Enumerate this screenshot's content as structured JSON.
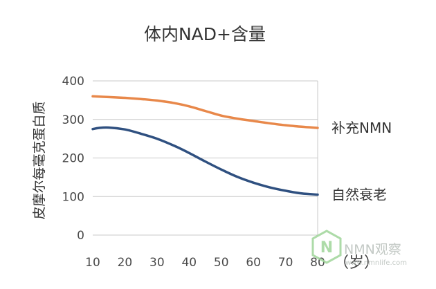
{
  "chart_data": {
    "type": "line",
    "title": "体内NAD+含量",
    "ylabel": "皮摩尔每毫克蛋白质",
    "x_unit_label": "（岁）",
    "x_ticks": [
      10,
      20,
      30,
      40,
      50,
      60,
      70,
      80
    ],
    "y_ticks": [
      0,
      100,
      200,
      300,
      400
    ],
    "xlim": [
      10,
      80
    ],
    "ylim": [
      0,
      400
    ],
    "grid": true,
    "series": [
      {
        "name": "补充NMN",
        "color": "#e8884a",
        "x": [
          10,
          15,
          20,
          25,
          30,
          35,
          40,
          45,
          50,
          55,
          60,
          65,
          70,
          75,
          80
        ],
        "y": [
          360,
          358,
          356,
          353,
          349,
          343,
          334,
          322,
          310,
          302,
          296,
          290,
          285,
          281,
          278
        ]
      },
      {
        "name": "自然衰老",
        "color": "#2f5080",
        "x": [
          10,
          12,
          15,
          20,
          25,
          30,
          35,
          40,
          45,
          50,
          55,
          60,
          65,
          70,
          75,
          80
        ],
        "y": [
          275,
          278,
          279,
          274,
          263,
          250,
          233,
          213,
          191,
          170,
          151,
          136,
          124,
          115,
          108,
          105
        ]
      }
    ]
  },
  "watermark": {
    "logo_letter": "N",
    "text": "NMN观察",
    "subtext": "www.nmnlife.com",
    "color": "#9fd59a"
  }
}
